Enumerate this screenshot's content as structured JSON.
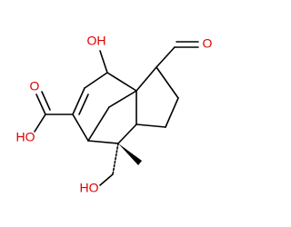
{
  "atoms": [
    {
      "label": "OH"
    },
    {
      "label": "O"
    },
    {
      "label": "O"
    },
    {
      "label": "HO"
    },
    {
      "label": "HO"
    }
  ]
}
